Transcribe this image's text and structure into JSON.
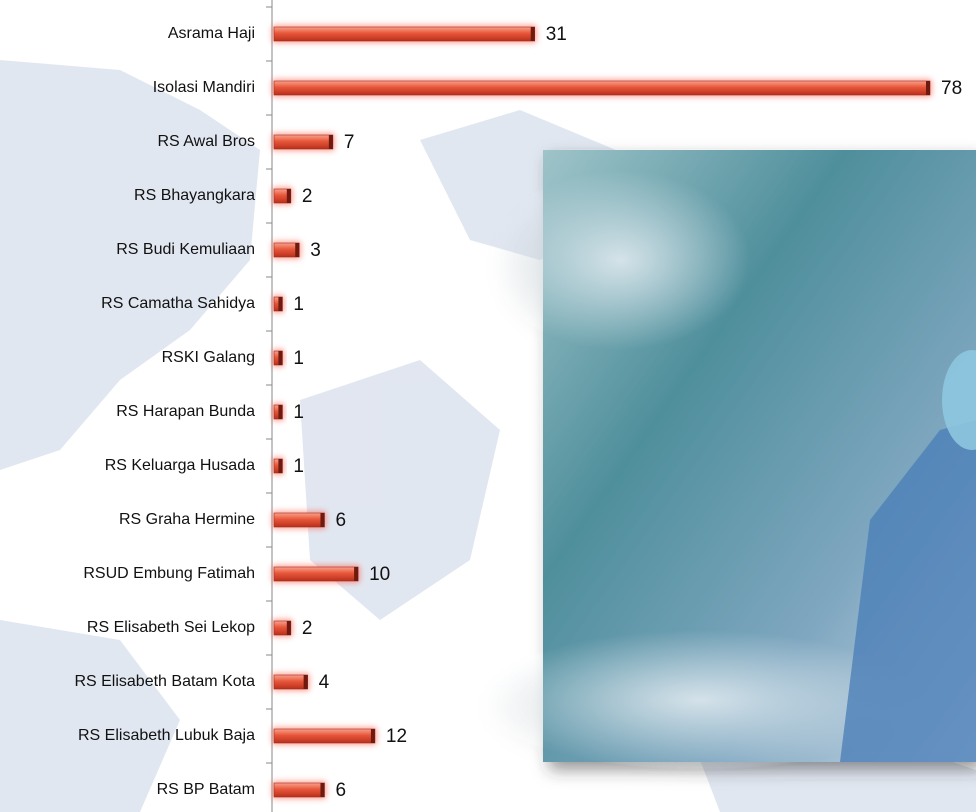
{
  "chart_data": {
    "type": "bar",
    "orientation": "horizontal",
    "color": "#e8563a",
    "categories": [
      "Asrama Haji",
      "Isolasi Mandiri",
      "RS Awal Bros",
      "RS Bhayangkara",
      "RS Budi Kemuliaan",
      "RS Camatha Sahidya",
      "RSKI Galang",
      "RS Harapan Bunda",
      "RS Keluarga Husada",
      "RS Graha Hermine",
      "RSUD Embung Fatimah",
      "RS Elisabeth Sei Lekop",
      "RS Elisabeth Batam Kota",
      "RS Elisabeth Lubuk Baja",
      "RS BP Batam"
    ],
    "values": [
      31,
      78,
      7,
      2,
      3,
      1,
      1,
      1,
      1,
      6,
      10,
      2,
      4,
      12,
      6
    ]
  }
}
